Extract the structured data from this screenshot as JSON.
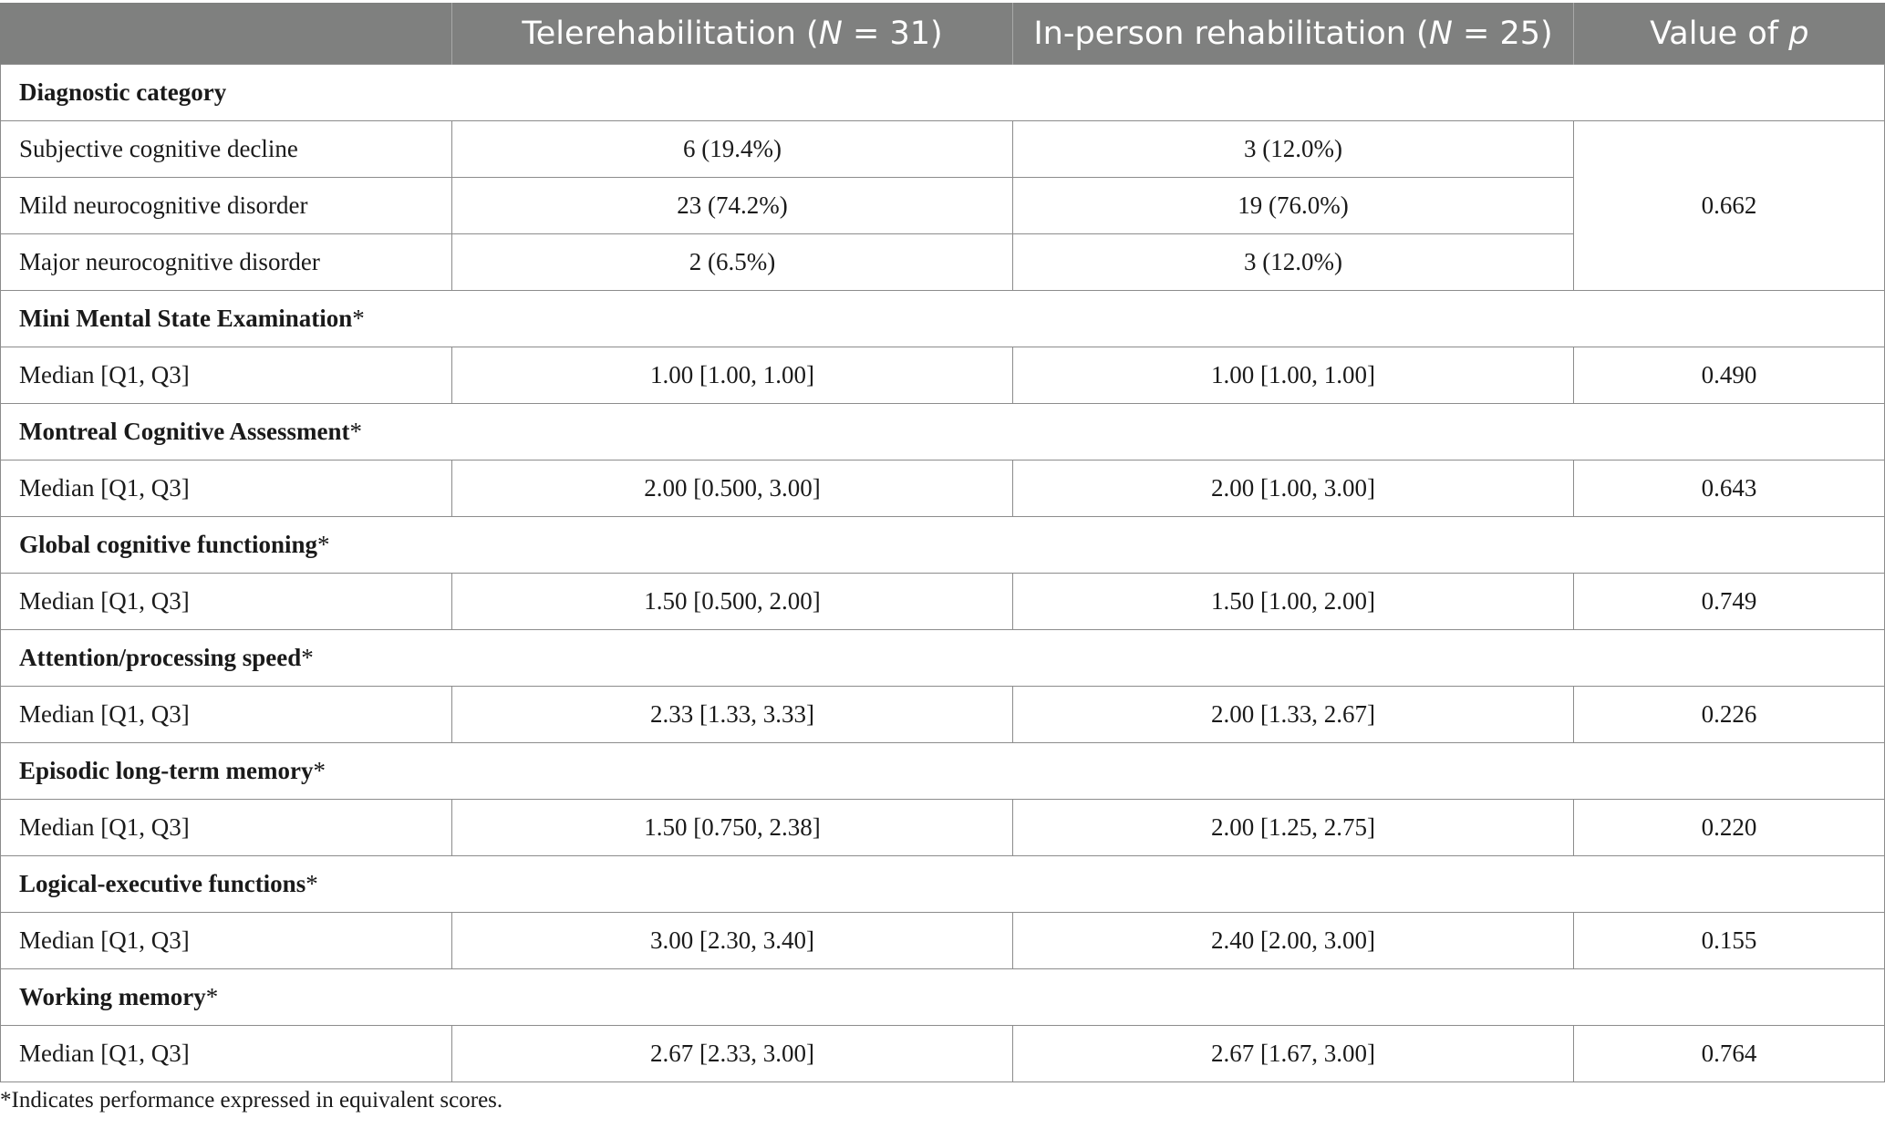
{
  "header": {
    "col1": "",
    "col2": "Telerehabilitation (N = 31)",
    "col3": "In-person rehabilitation (N = 25)",
    "col4": "Value of p"
  },
  "diagnostic": {
    "title": "Diagnostic category",
    "rows": [
      {
        "label": "Subjective cognitive decline",
        "tele": "6 (19.4%)",
        "inperson": "3 (12.0%)"
      },
      {
        "label": "Mild neurocognitive disorder",
        "tele": "23 (74.2%)",
        "inperson": "19 (76.0%)"
      },
      {
        "label": "Major neurocognitive disorder",
        "tele": "2 (6.5%)",
        "inperson": "3 (12.0%)"
      }
    ],
    "p": "0.662"
  },
  "sections": [
    {
      "title": "Mini Mental State Examination",
      "mark": "*",
      "label": "Median [Q1, Q3]",
      "tele": "1.00 [1.00, 1.00]",
      "inperson": "1.00 [1.00, 1.00]",
      "p": "0.490"
    },
    {
      "title": "Montreal Cognitive Assessment",
      "mark": "*",
      "label": "Median [Q1, Q3]",
      "tele": "2.00 [0.500, 3.00]",
      "inperson": "2.00 [1.00, 3.00]",
      "p": "0.643"
    },
    {
      "title": "Global cognitive functioning",
      "mark": "*",
      "label": "Median [Q1, Q3]",
      "tele": "1.50 [0.500, 2.00]",
      "inperson": "1.50 [1.00, 2.00]",
      "p": "0.749"
    },
    {
      "title": "Attention/processing speed",
      "mark": "*",
      "label": "Median [Q1, Q3]",
      "tele": "2.33 [1.33, 3.33]",
      "inperson": "2.00 [1.33, 2.67]",
      "p": "0.226"
    },
    {
      "title": "Episodic long-term memory",
      "mark": "*",
      "label": "Median [Q1, Q3]",
      "tele": "1.50 [0.750, 2.38]",
      "inperson": "2.00 [1.25, 2.75]",
      "p": "0.220"
    },
    {
      "title": "Logical-executive functions",
      "mark": "*",
      "label": "Median [Q1, Q3]",
      "tele": "3.00 [2.30, 3.40]",
      "inperson": "2.40 [2.00, 3.00]",
      "p": "0.155"
    },
    {
      "title": "Working memory",
      "mark": "*",
      "label": "Median [Q1, Q3]",
      "tele": "2.67 [2.33, 3.00]",
      "inperson": "2.67 [1.67, 3.00]",
      "p": "0.764"
    }
  ],
  "footnote": "*Indicates performance expressed in equivalent scores.",
  "colors": {
    "header_bg": "#7f807f",
    "border": "#8c8c8c"
  }
}
